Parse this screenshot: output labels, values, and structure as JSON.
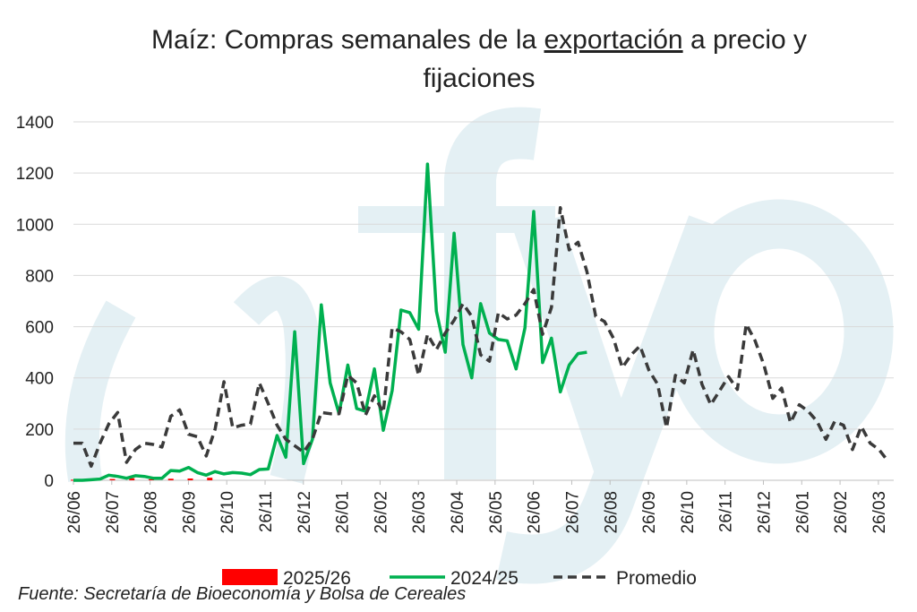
{
  "chart_data": {
    "type": "line",
    "title_line1_prefix": "Maíz: Compras semanales de la ",
    "title_line1_underlined": "exportación",
    "title_line1_suffix": " a precio y",
    "title_line2": "fijaciones",
    "y_ticks": [
      0,
      200,
      400,
      600,
      800,
      1000,
      1200,
      1400
    ],
    "ylim": [
      0,
      1400
    ],
    "x_tick_labels": [
      "26/06",
      "26/07",
      "26/08",
      "26/09",
      "26/10",
      "26/11",
      "26/12",
      "26/01",
      "26/02",
      "26/03",
      "26/04",
      "26/05",
      "26/06",
      "26/07",
      "26/08",
      "26/09",
      "26/10",
      "26/11",
      "26/12",
      "26/01",
      "26/02",
      "26/03"
    ],
    "x_weeks": 52,
    "grid": "horizontal",
    "legend_position": "bottom",
    "watermark": "cfyo",
    "colors": {
      "s2025_26": "#ff0000",
      "s2024_25": "#00b050",
      "promedio": "#3a3a3a",
      "watermark": "#e4f0f4",
      "grid": "#d9d9d9"
    },
    "series": [
      {
        "name": "2025/26",
        "style": "bar",
        "values": [
          2,
          3,
          5,
          8,
          4,
          6,
          7,
          10
        ]
      },
      {
        "name": "2024/25",
        "style": "solid",
        "values": [
          0,
          0,
          2,
          5,
          20,
          15,
          8,
          18,
          15,
          8,
          8,
          38,
          36,
          50,
          30,
          20,
          34,
          25,
          30,
          28,
          22,
          42,
          44,
          175,
          90,
          580,
          65,
          160,
          685,
          380,
          260,
          450,
          280,
          270,
          435,
          195,
          350,
          665,
          655,
          590,
          1235,
          660,
          500,
          965,
          530,
          400,
          690,
          575,
          550,
          545,
          435,
          595,
          1050,
          460,
          555,
          345,
          450,
          495,
          500
        ]
      },
      {
        "name": "Promedio",
        "style": "dashed",
        "values": [
          145,
          145,
          55,
          145,
          220,
          265,
          70,
          120,
          145,
          140,
          130,
          250,
          275,
          180,
          170,
          95,
          200,
          385,
          205,
          215,
          220,
          380,
          300,
          215,
          160,
          135,
          110,
          160,
          265,
          260,
          260,
          410,
          380,
          255,
          330,
          265,
          595,
          580,
          550,
          410,
          570,
          510,
          575,
          625,
          690,
          640,
          490,
          465,
          655,
          630,
          645,
          690,
          745,
          570,
          675,
          1065,
          900,
          930,
          815,
          640,
          620,
          555,
          440,
          490,
          525,
          430,
          375,
          205,
          410,
          380,
          510,
          375,
          295,
          350,
          405,
          355,
          610,
          545,
          450,
          320,
          360,
          225,
          295,
          270,
          230,
          160,
          230,
          215,
          120,
          210,
          145,
          120,
          75
        ]
      }
    ]
  },
  "legend": {
    "s2025_26_label": "2025/26",
    "s2024_25_label": "2024/25",
    "promedio_label": "Promedio"
  },
  "source": "Fuente: Secretaría de Bioeconomía y Bolsa de Cereales"
}
